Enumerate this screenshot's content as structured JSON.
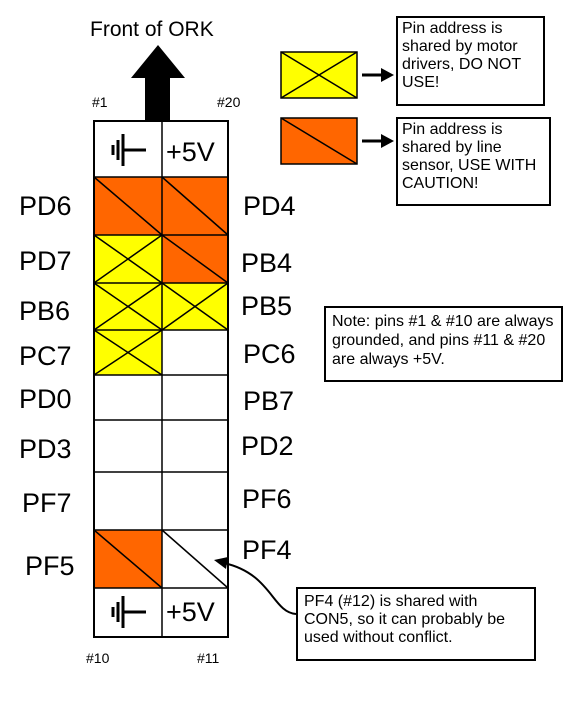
{
  "title": "Front of ORK",
  "pin_corner_labels": {
    "top_left": "#1",
    "top_right": "#20",
    "bottom_left": "#10",
    "bottom_right": "#11"
  },
  "colors": {
    "motor": "#ffff00",
    "sensor": "#ff6600",
    "free": "#ffffff",
    "line": "#000000"
  },
  "rows": [
    {
      "left": {
        "label": "",
        "kind": "ground",
        "icon": "ground-icon"
      },
      "right": {
        "label": "+5V",
        "kind": "vcc"
      }
    },
    {
      "left": {
        "label": "PD6",
        "kind": "sensor"
      },
      "right": {
        "label": "PD4",
        "kind": "sensor"
      }
    },
    {
      "left": {
        "label": "PD7",
        "kind": "motor"
      },
      "right": {
        "label": "PB4",
        "kind": "sensor"
      }
    },
    {
      "left": {
        "label": "PB6",
        "kind": "motor"
      },
      "right": {
        "label": "PB5",
        "kind": "motor"
      }
    },
    {
      "left": {
        "label": "PC7",
        "kind": "motor"
      },
      "right": {
        "label": "PC6",
        "kind": "free"
      }
    },
    {
      "left": {
        "label": "PD0",
        "kind": "free"
      },
      "right": {
        "label": "PB7",
        "kind": "free"
      }
    },
    {
      "left": {
        "label": "PD3",
        "kind": "free"
      },
      "right": {
        "label": "PD2",
        "kind": "free"
      }
    },
    {
      "left": {
        "label": "PF7",
        "kind": "free"
      },
      "right": {
        "label": "PF6",
        "kind": "free"
      }
    },
    {
      "left": {
        "label": "PF5",
        "kind": "sensor"
      },
      "right": {
        "label": "PF4",
        "kind": "con5"
      }
    },
    {
      "left": {
        "label": "",
        "kind": "ground",
        "icon": "ground-icon"
      },
      "right": {
        "label": "+5V",
        "kind": "vcc"
      }
    }
  ],
  "legend": [
    {
      "kind": "motor",
      "text": "Pin address is shared by motor drivers, DO NOT USE!"
    },
    {
      "kind": "sensor",
      "text": "Pin address is shared by line sensor, USE WITH CAUTION!"
    }
  ],
  "note": "Note: pins #1 & #10 are always grounded, and pins #11 & #20 are always +5V.",
  "callout": "PF4 (#12) is shared with CON5, so it can probably be used without conflict."
}
